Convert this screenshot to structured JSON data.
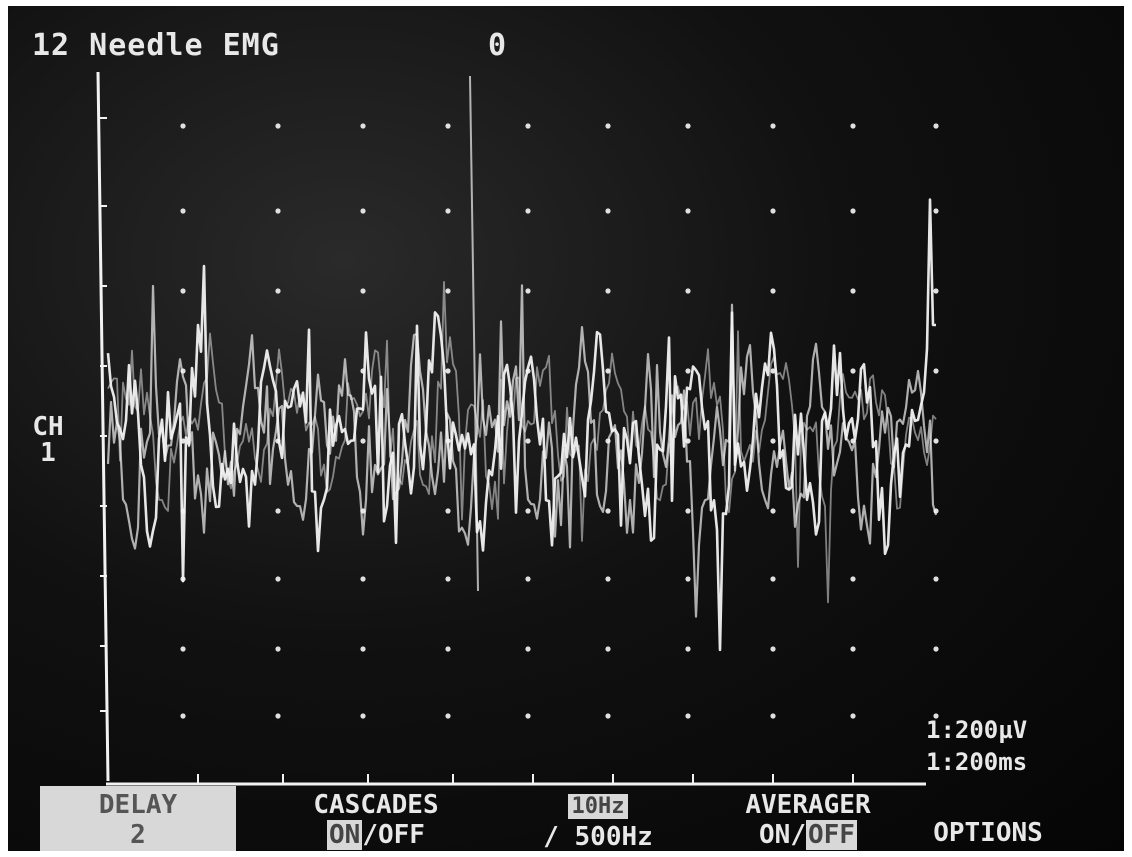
{
  "header": {
    "title": "12 Needle EMG",
    "marker": "0"
  },
  "channel": {
    "label_line1": "CH",
    "label_line2": "1"
  },
  "scale": {
    "sensitivity": "1:200µV",
    "sweep": "1:200ms"
  },
  "softkeys": {
    "delay": {
      "label": "DELAY",
      "value": "2"
    },
    "cascades": {
      "label": "CASCADES",
      "on": "ON",
      "off": "/OFF"
    },
    "filter": {
      "low": "10Hz",
      "high": "/ 500Hz"
    },
    "averager": {
      "label": "AVERAGER",
      "on": "ON/",
      "off": "OFF"
    },
    "options": {
      "label": "OPTIONS"
    }
  },
  "colors": {
    "trace": "#f2f2f2",
    "grid_dot": "#e0e0e0",
    "background": "#0a0a0a",
    "softkey_highlight": "#d8d8d8"
  }
}
